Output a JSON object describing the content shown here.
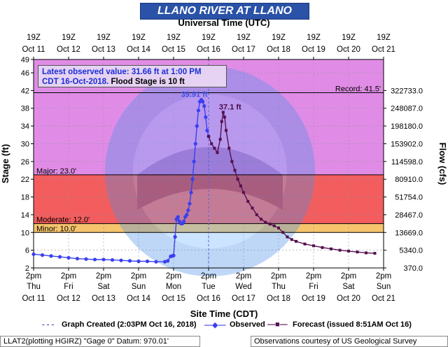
{
  "title": "LLANO RIVER AT LLANO",
  "top_axis_title": "Universal Time (UTC)",
  "bottom_axis_title": "Site Time (CDT)",
  "info": {
    "latest": "Latest observed value: 31.66 ft at 1:00 PM",
    "date": "CDT 16-Oct-2018.",
    "flood_stage": "Flood Stage is 10 ft"
  },
  "legend": {
    "created": "Graph Created (2:03PM Oct 16, 2018)",
    "observed": "Observed",
    "forecast": "Forecast (issued 8:51AM Oct 16)"
  },
  "footer": {
    "left": "LLAT2(plotting HGIRZ) \"Gage 0\" Datum: 970.01'",
    "right": "Observations courtesy of US Geological Survey"
  },
  "chart_data": {
    "type": "line",
    "ylabel": "Stage (ft)",
    "y2label": "Flow (cfs)",
    "ylim": [
      2,
      49
    ],
    "xlim": [
      0,
      240
    ],
    "y_ticks": [
      2,
      6,
      10,
      14,
      18,
      22,
      26,
      30,
      34,
      38,
      42,
      46,
      49
    ],
    "y2_ticks": [
      {
        "stage": 2,
        "label": "370.0"
      },
      {
        "stage": 6,
        "label": "5340.0"
      },
      {
        "stage": 10,
        "label": "13669.0"
      },
      {
        "stage": 14,
        "label": "28467.0"
      },
      {
        "stage": 18,
        "label": "51754.0"
      },
      {
        "stage": 22,
        "label": "80910.0"
      },
      {
        "stage": 26,
        "label": "114598.0"
      },
      {
        "stage": 30,
        "label": "153902.0"
      },
      {
        "stage": 34,
        "label": "198180.0"
      },
      {
        "stage": 38,
        "label": "248087.0"
      },
      {
        "stage": 42,
        "label": "322733.0"
      }
    ],
    "top_ticks": [
      {
        "line1": "19Z",
        "line2": "Oct 11"
      },
      {
        "line1": "19Z",
        "line2": "Oct 12"
      },
      {
        "line1": "19Z",
        "line2": "Oct 13"
      },
      {
        "line1": "19Z",
        "line2": "Oct 14"
      },
      {
        "line1": "19Z",
        "line2": "Oct 15"
      },
      {
        "line1": "19Z",
        "line2": "Oct 16"
      },
      {
        "line1": "19Z",
        "line2": "Oct 17"
      },
      {
        "line1": "19Z",
        "line2": "Oct 18"
      },
      {
        "line1": "19Z",
        "line2": "Oct 19"
      },
      {
        "line1": "19Z",
        "line2": "Oct 20"
      },
      {
        "line1": "19Z",
        "line2": "Oct 21"
      }
    ],
    "bottom_ticks": [
      {
        "line1": "2pm",
        "line2": "Thu",
        "line3": "Oct 11"
      },
      {
        "line1": "2pm",
        "line2": "Fri",
        "line3": "Oct 12"
      },
      {
        "line1": "2pm",
        "line2": "Sat",
        "line3": "Oct 13"
      },
      {
        "line1": "2pm",
        "line2": "Sun",
        "line3": "Oct 14"
      },
      {
        "line1": "2pm",
        "line2": "Mon",
        "line3": "Oct 15"
      },
      {
        "line1": "2pm",
        "line2": "Tue",
        "line3": "Oct 16"
      },
      {
        "line1": "2pm",
        "line2": "Wed",
        "line3": "Oct 17"
      },
      {
        "line1": "2pm",
        "line2": "Thu",
        "line3": "Oct 18"
      },
      {
        "line1": "2pm",
        "line2": "Fri",
        "line3": "Oct 19"
      },
      {
        "line1": "2pm",
        "line2": "Sat",
        "line3": "Oct 20"
      },
      {
        "line1": "2pm",
        "line2": "Sun",
        "line3": "Oct 21"
      }
    ],
    "bands": [
      {
        "name": "Minor",
        "from": 10,
        "to": 12,
        "color": "#f6c46d"
      },
      {
        "name": "Moderate",
        "from": 12,
        "to": 23,
        "color": "#f35d5d"
      },
      {
        "name": "Major",
        "from": 23,
        "to": 49,
        "color": "#e08ce6"
      }
    ],
    "thresholds": [
      {
        "label": "Minor: 10.0'",
        "value": 10
      },
      {
        "label": "Moderate: 12.0'",
        "value": 12
      },
      {
        "label": "Major: 23.0'",
        "value": 23
      },
      {
        "label": "Record: 41.5'",
        "value": 41.5
      }
    ],
    "graph_created_hours": 120,
    "annotations": [
      {
        "text": "39.91 ft",
        "x": 115,
        "y": 39.91,
        "color": "#3a4fe8"
      },
      {
        "text": "37.1 ft",
        "x": 130,
        "y": 37.1,
        "color": "#4a0a48"
      }
    ],
    "series": [
      {
        "name": "Observed",
        "color": "#3a3ff0",
        "x": [
          0,
          6,
          12,
          18,
          24,
          30,
          36,
          42,
          48,
          54,
          60,
          66,
          72,
          78,
          84,
          90,
          92,
          94,
          95,
          96,
          97,
          98,
          99,
          100,
          101,
          102,
          103,
          104,
          105,
          106,
          107,
          108,
          109,
          110,
          111,
          112,
          113,
          114,
          115,
          116,
          117,
          118,
          119,
          120
        ],
        "y": [
          5.1,
          4.9,
          4.7,
          4.5,
          4.3,
          4.1,
          4.0,
          3.9,
          3.9,
          3.8,
          3.7,
          3.6,
          3.5,
          3.5,
          3.4,
          3.4,
          3.6,
          4.6,
          4.7,
          4.8,
          9.0,
          13.0,
          13.5,
          12.5,
          12.0,
          12.0,
          12.5,
          13.5,
          14.0,
          15.0,
          16.5,
          19.0,
          22.0,
          26.0,
          30.0,
          34.0,
          37.5,
          39.5,
          39.91,
          39.5,
          38.5,
          36.0,
          33.0,
          31.66
        ]
      },
      {
        "name": "Forecast",
        "color": "#54104f",
        "x": [
          120,
          122,
          124,
          126,
          128,
          129,
          130,
          131,
          132,
          134,
          136,
          138,
          140,
          142,
          144,
          147,
          150,
          153,
          156,
          159,
          162,
          165,
          168,
          171,
          174,
          177,
          180,
          186,
          192,
          198,
          204,
          210,
          216,
          222,
          228,
          234
        ],
        "y": [
          31.66,
          30.0,
          29.0,
          28.0,
          31.0,
          35.0,
          37.1,
          36.0,
          33.0,
          29.0,
          26.0,
          24.0,
          22.0,
          20.5,
          19.0,
          17.0,
          15.5,
          14.0,
          13.0,
          12.3,
          11.9,
          11.5,
          11.0,
          10.0,
          9.0,
          8.4,
          8.0,
          7.4,
          7.0,
          6.6,
          6.3,
          6.0,
          5.8,
          5.6,
          5.4,
          5.3
        ]
      }
    ]
  }
}
